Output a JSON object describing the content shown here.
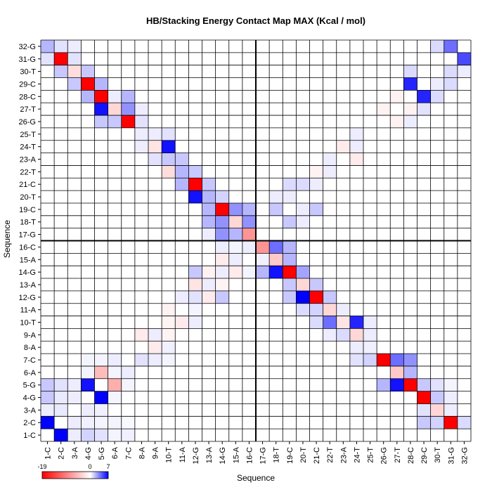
{
  "chart_data": {
    "type": "heatmap",
    "title": "HB/Stacking Energy Contact Map MAX (Kcal / mol)",
    "xlabel": "Sequence",
    "ylabel": "Sequence",
    "labels": [
      "1-C",
      "2-C",
      "3-A",
      "4-G",
      "5-G",
      "6-A",
      "7-C",
      "8-A",
      "9-A",
      "10-T",
      "11-A",
      "12-G",
      "13-A",
      "14-G",
      "15-A",
      "16-C",
      "17-G",
      "18-T",
      "19-C",
      "20-T",
      "21-C",
      "22-T",
      "23-A",
      "24-T",
      "25-T",
      "26-G",
      "27-T",
      "28-C",
      "29-C",
      "30-T",
      "31-G",
      "32-G"
    ],
    "color_scale": {
      "min": -19,
      "zero": 0,
      "max": 7,
      "min_color": "#ff0000",
      "zero_color": "#ffffff",
      "max_color": "#0000ff"
    },
    "legend_ticks": [
      "-19",
      "0",
      "7"
    ],
    "divider_after_index": 16,
    "cells": [
      [
        1,
        2,
        7
      ],
      [
        1,
        3,
        0.5
      ],
      [
        1,
        4,
        1.2
      ],
      [
        1,
        5,
        0.8
      ],
      [
        1,
        6,
        0.3
      ],
      [
        1,
        7,
        0.4
      ],
      [
        2,
        1,
        7
      ],
      [
        2,
        3,
        0.5
      ],
      [
        2,
        4,
        0.4
      ],
      [
        2,
        5,
        0.3
      ],
      [
        2,
        6,
        0.3
      ],
      [
        2,
        7,
        0.2
      ],
      [
        2,
        29,
        1.5
      ],
      [
        2,
        30,
        1.2
      ],
      [
        2,
        31,
        -19
      ],
      [
        2,
        32,
        1.0
      ],
      [
        3,
        1,
        0.5
      ],
      [
        3,
        2,
        0.6
      ],
      [
        3,
        4,
        0.5
      ],
      [
        3,
        5,
        0.4
      ],
      [
        3,
        29,
        0.8
      ],
      [
        3,
        30,
        -3
      ],
      [
        3,
        31,
        0.5
      ],
      [
        4,
        1,
        1.5
      ],
      [
        4,
        2,
        0.6
      ],
      [
        4,
        3,
        0.5
      ],
      [
        4,
        5,
        7
      ],
      [
        4,
        6,
        0.3
      ],
      [
        4,
        29,
        -19
      ],
      [
        4,
        30,
        1.5
      ],
      [
        4,
        31,
        0.5
      ],
      [
        5,
        1,
        1.5
      ],
      [
        5,
        2,
        0.8
      ],
      [
        5,
        3,
        0.5
      ],
      [
        5,
        4,
        6.5
      ],
      [
        5,
        6,
        -6
      ],
      [
        5,
        7,
        0.3
      ],
      [
        5,
        26,
        2
      ],
      [
        5,
        27,
        6.5
      ],
      [
        5,
        28,
        -19
      ],
      [
        5,
        29,
        1.5
      ],
      [
        5,
        30,
        0.8
      ],
      [
        5,
        31,
        0.3
      ],
      [
        6,
        4,
        0.3
      ],
      [
        6,
        5,
        -5
      ],
      [
        6,
        6,
        0.3
      ],
      [
        6,
        7,
        0.5
      ],
      [
        6,
        27,
        -4
      ],
      [
        6,
        28,
        2
      ],
      [
        7,
        4,
        0.3
      ],
      [
        7,
        5,
        0.3
      ],
      [
        7,
        6,
        0.5
      ],
      [
        7,
        8,
        0.8
      ],
      [
        7,
        9,
        0.5
      ],
      [
        7,
        10,
        0.3
      ],
      [
        7,
        24,
        0.8
      ],
      [
        7,
        25,
        1.2
      ],
      [
        7,
        26,
        -19
      ],
      [
        7,
        27,
        4
      ],
      [
        7,
        28,
        3
      ],
      [
        8,
        9,
        -1.5
      ],
      [
        8,
        10,
        0.4
      ],
      [
        8,
        24,
        0.5
      ],
      [
        8,
        25,
        0.4
      ],
      [
        9,
        8,
        -1.5
      ],
      [
        9,
        9,
        0.5
      ],
      [
        9,
        10,
        -0.8
      ],
      [
        9,
        22,
        0.5
      ],
      [
        9,
        23,
        1
      ],
      [
        9,
        24,
        -3
      ],
      [
        9,
        25,
        0.5
      ],
      [
        10,
        10,
        -0.8
      ],
      [
        10,
        11,
        -1.5
      ],
      [
        10,
        12,
        0.5
      ],
      [
        10,
        21,
        1
      ],
      [
        10,
        22,
        4
      ],
      [
        10,
        23,
        -2
      ],
      [
        10,
        24,
        6
      ],
      [
        10,
        25,
        0.5
      ],
      [
        11,
        10,
        -1
      ],
      [
        11,
        12,
        0.3
      ],
      [
        11,
        20,
        1
      ],
      [
        11,
        21,
        1.2
      ],
      [
        11,
        22,
        -3
      ],
      [
        11,
        23,
        0.5
      ],
      [
        12,
        11,
        0.5
      ],
      [
        12,
        12,
        0.8
      ],
      [
        12,
        13,
        -1.5
      ],
      [
        12,
        14,
        1.5
      ],
      [
        12,
        19,
        1.5
      ],
      [
        12,
        20,
        7
      ],
      [
        12,
        21,
        -19
      ],
      [
        12,
        22,
        1.5
      ],
      [
        13,
        12,
        -2
      ],
      [
        13,
        13,
        0.5
      ],
      [
        13,
        14,
        -0.8
      ],
      [
        13,
        19,
        1.5
      ],
      [
        13,
        20,
        -3
      ],
      [
        13,
        21,
        1.5
      ],
      [
        14,
        12,
        1.5
      ],
      [
        14,
        13,
        -1
      ],
      [
        14,
        14,
        0.5
      ],
      [
        14,
        15,
        -1.5
      ],
      [
        14,
        16,
        0.3
      ],
      [
        14,
        17,
        2
      ],
      [
        14,
        18,
        6.5
      ],
      [
        14,
        19,
        -19
      ],
      [
        14,
        20,
        2.5
      ],
      [
        15,
        14,
        -1.5
      ],
      [
        15,
        15,
        0.5
      ],
      [
        15,
        17,
        0.4
      ],
      [
        15,
        18,
        -4
      ],
      [
        15,
        19,
        2
      ],
      [
        16,
        14,
        0.5
      ],
      [
        16,
        15,
        0.3
      ],
      [
        16,
        16,
        0.5
      ],
      [
        16,
        17,
        -8
      ],
      [
        16,
        18,
        4
      ],
      [
        16,
        19,
        2
      ],
      [
        17,
        16,
        -8
      ],
      [
        17,
        15,
        2
      ],
      [
        17,
        14,
        3
      ],
      [
        17,
        13,
        0.5
      ],
      [
        18,
        16,
        3
      ],
      [
        18,
        15,
        -3
      ],
      [
        18,
        14,
        3
      ],
      [
        18,
        13,
        2
      ],
      [
        18,
        19,
        1.5
      ],
      [
        18,
        20,
        0.5
      ],
      [
        19,
        16,
        2
      ],
      [
        19,
        15,
        3
      ],
      [
        19,
        14,
        -19
      ],
      [
        19,
        13,
        2
      ],
      [
        19,
        18,
        1.5
      ],
      [
        19,
        20,
        0.5
      ],
      [
        19,
        21,
        1.5
      ],
      [
        20,
        13,
        2
      ],
      [
        20,
        12,
        6.5
      ],
      [
        20,
        14,
        1.2
      ],
      [
        20,
        19,
        0.5
      ],
      [
        20,
        18,
        0.5
      ],
      [
        21,
        12,
        -19
      ],
      [
        21,
        11,
        2
      ],
      [
        21,
        13,
        1.5
      ],
      [
        21,
        19,
        1
      ],
      [
        21,
        20,
        1
      ],
      [
        21,
        21,
        0.5
      ],
      [
        22,
        11,
        2
      ],
      [
        22,
        10,
        -2.5
      ],
      [
        22,
        12,
        1.5
      ],
      [
        22,
        21,
        -1
      ],
      [
        22,
        22,
        0.5
      ],
      [
        23,
        10,
        1.5
      ],
      [
        23,
        9,
        0.8
      ],
      [
        23,
        11,
        1.5
      ],
      [
        23,
        22,
        0.5
      ],
      [
        23,
        24,
        -1.5
      ],
      [
        24,
        9,
        -2
      ],
      [
        24,
        10,
        6.5
      ],
      [
        24,
        8,
        0.5
      ],
      [
        24,
        24,
        0.5
      ],
      [
        24,
        23,
        -1.5
      ],
      [
        25,
        8,
        0.5
      ],
      [
        25,
        9,
        0.5
      ],
      [
        25,
        10,
        0.8
      ],
      [
        25,
        24,
        0.5
      ],
      [
        26,
        7,
        -19
      ],
      [
        26,
        6,
        1.5
      ],
      [
        26,
        5,
        1.5
      ],
      [
        26,
        8,
        0.8
      ],
      [
        26,
        27,
        -1
      ],
      [
        26,
        28,
        0.5
      ],
      [
        27,
        7,
        3
      ],
      [
        27,
        6,
        -3
      ],
      [
        27,
        5,
        6.5
      ],
      [
        27,
        8,
        0.5
      ],
      [
        27,
        26,
        -1
      ],
      [
        27,
        28,
        -1
      ],
      [
        27,
        29,
        0.8
      ],
      [
        28,
        6,
        0.5
      ],
      [
        28,
        5,
        -19
      ],
      [
        28,
        4,
        2
      ],
      [
        28,
        7,
        2
      ],
      [
        28,
        27,
        -1
      ],
      [
        28,
        29,
        6
      ],
      [
        28,
        30,
        1
      ],
      [
        29,
        4,
        -19
      ],
      [
        29,
        3,
        1.5
      ],
      [
        29,
        5,
        2
      ],
      [
        29,
        28,
        6
      ],
      [
        29,
        30,
        0.5
      ],
      [
        29,
        31,
        1
      ],
      [
        30,
        3,
        -2.5
      ],
      [
        30,
        2,
        1.5
      ],
      [
        30,
        4,
        1.5
      ],
      [
        30,
        28,
        1
      ],
      [
        30,
        31,
        1
      ],
      [
        30,
        32,
        0.5
      ],
      [
        31,
        2,
        -19
      ],
      [
        31,
        1,
        0.8
      ],
      [
        31,
        3,
        0.8
      ],
      [
        31,
        32,
        5
      ],
      [
        32,
        1,
        2
      ],
      [
        32,
        2,
        0.8
      ],
      [
        32,
        3,
        0.5
      ],
      [
        32,
        31,
        4
      ],
      [
        32,
        30,
        1
      ]
    ]
  }
}
